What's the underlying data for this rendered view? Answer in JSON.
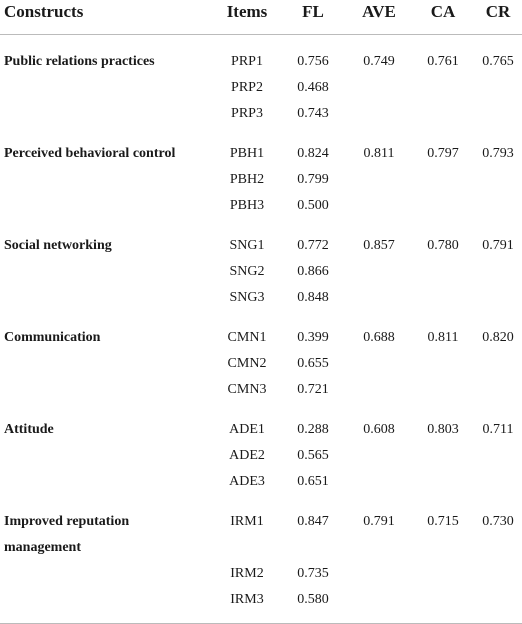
{
  "table": {
    "header": [
      "Constructs",
      "Items",
      "FL",
      "AVE",
      "CA",
      "CR"
    ],
    "groups": [
      {
        "construct": "Public relations practices",
        "ave": "0.749",
        "ca": "0.761",
        "cr": "0.765",
        "rows": [
          [
            "PRP1",
            "0.756"
          ],
          [
            "PRP2",
            "0.468"
          ],
          [
            "PRP3",
            "0.743"
          ]
        ]
      },
      {
        "construct": "Perceived behavioral control",
        "ave": "0.811",
        "ca": "0.797",
        "cr": "0.793",
        "rows": [
          [
            "PBH1",
            "0.824"
          ],
          [
            "PBH2",
            "0.799"
          ],
          [
            "PBH3",
            "0.500"
          ]
        ]
      },
      {
        "construct": "Social networking",
        "ave": "0.857",
        "ca": "0.780",
        "cr": "0.791",
        "rows": [
          [
            "SNG1",
            "0.772"
          ],
          [
            "SNG2",
            "0.866"
          ],
          [
            "SNG3",
            "0.848"
          ]
        ]
      },
      {
        "construct": "Communication",
        "ave": "0.688",
        "ca": "0.811",
        "cr": "0.820",
        "rows": [
          [
            "CMN1",
            "0.399"
          ],
          [
            "CMN2",
            "0.655"
          ],
          [
            "CMN3",
            "0.721"
          ]
        ]
      },
      {
        "construct": "Attitude",
        "ave": "0.608",
        "ca": "0.803",
        "cr": "0.711",
        "rows": [
          [
            "ADE1",
            "0.288"
          ],
          [
            "ADE2",
            "0.565"
          ],
          [
            "ADE3",
            "0.651"
          ]
        ]
      },
      {
        "construct": "Improved reputation management",
        "ave": "0.791",
        "ca": "0.715",
        "cr": "0.730",
        "rows": [
          [
            "IRM1",
            "0.847"
          ],
          [
            "IRM2",
            "0.735"
          ],
          [
            "IRM3",
            "0.580"
          ]
        ]
      }
    ]
  }
}
